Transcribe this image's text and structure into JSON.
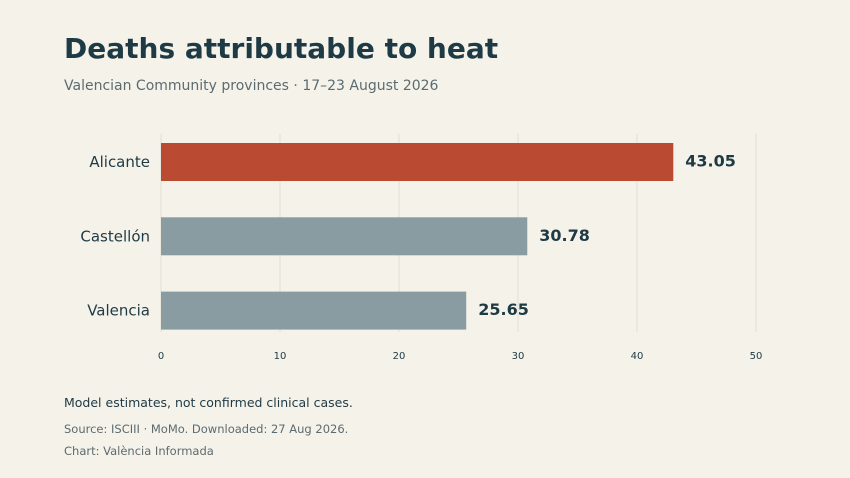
{
  "header": {
    "title": "Deaths attributable to heat",
    "subtitle": "Valencian Community provinces · 17–23 August 2026"
  },
  "footer": {
    "note": "Model estimates, not confirmed clinical cases.",
    "source": "Source: ISCIII · MoMo. Downloaded: 27 Aug 2026.",
    "credit": "Chart: València Informada"
  },
  "colors": {
    "background": "#f5f2ea",
    "highlight": "#bb4a33",
    "default_bar": "#899ca2",
    "text": "#1e3a44",
    "grid": "#e2ded4"
  },
  "chart_data": {
    "type": "bar",
    "orientation": "horizontal",
    "title": "Deaths attributable to heat",
    "subtitle": "Valencian Community provinces · 17–23 August 2026",
    "xlabel": "",
    "ylabel": "",
    "categories": [
      "Alicante",
      "Castellón",
      "Valencia"
    ],
    "values": [
      43.05,
      30.78,
      25.65
    ],
    "value_labels": [
      "43.05",
      "30.78",
      "25.65"
    ],
    "highlight": "Alicante",
    "xlim": [
      0,
      50
    ],
    "xticks": [
      0,
      10,
      20,
      30,
      40,
      50
    ],
    "grid": "vertical"
  }
}
